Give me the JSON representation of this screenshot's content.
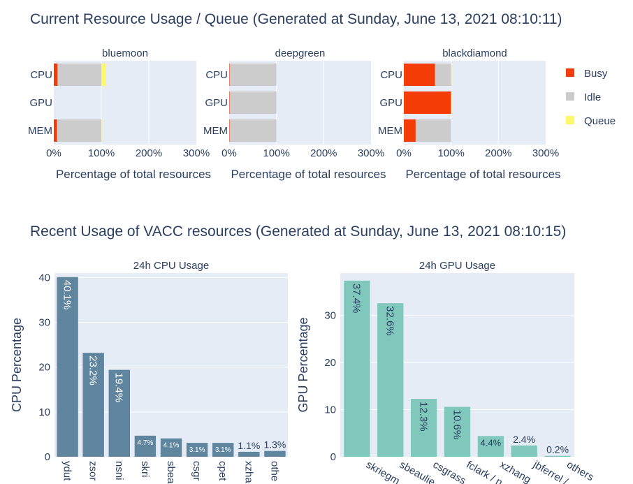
{
  "section1": {
    "title": "Current Resource Usage / Queue (Generated at Sunday, June 13, 2021 08:10:11)"
  },
  "section2": {
    "title": "Recent Usage of VACC resources (Generated at Sunday, June 13, 2021 08:10:15)"
  },
  "colors": {
    "busy": "#F43C06",
    "idle": "#CCCCCC",
    "queue": "#FFF86B",
    "plot_bg": "#E5ECF6",
    "cpu_bar": "#5F859F",
    "gpu_bar": "#7FC8BB"
  },
  "chart_data": [
    {
      "type": "bar",
      "orientation": "horizontal",
      "stacked": true,
      "title": "bluemoon",
      "xlabel": "Percentage of total resources",
      "categories": [
        "CPU",
        "GPU",
        "MEM"
      ],
      "xlim": [
        0,
        300
      ],
      "xticks": [
        "0%",
        "100%",
        "200%",
        "300%"
      ],
      "series": [
        {
          "name": "Busy",
          "values": [
            8,
            0,
            7
          ]
        },
        {
          "name": "Idle",
          "values": [
            92,
            0,
            93
          ]
        },
        {
          "name": "Queue",
          "values": [
            10,
            0,
            2
          ]
        }
      ]
    },
    {
      "type": "bar",
      "orientation": "horizontal",
      "stacked": true,
      "title": "deepgreen",
      "xlabel": "Percentage of total resources",
      "categories": [
        "CPU",
        "GPU",
        "MEM"
      ],
      "xlim": [
        0,
        300
      ],
      "xticks": [
        "0%",
        "100%",
        "200%",
        "300%"
      ],
      "series": [
        {
          "name": "Busy",
          "values": [
            1,
            1,
            1
          ]
        },
        {
          "name": "Idle",
          "values": [
            99,
            99,
            99
          ]
        },
        {
          "name": "Queue",
          "values": [
            0,
            0,
            0
          ]
        }
      ]
    },
    {
      "type": "bar",
      "orientation": "horizontal",
      "stacked": true,
      "title": "blackdiamond",
      "xlabel": "Percentage of total resources",
      "categories": [
        "CPU",
        "GPU",
        "MEM"
      ],
      "xlim": [
        0,
        300
      ],
      "xticks": [
        "0%",
        "100%",
        "200%",
        "300%"
      ],
      "series": [
        {
          "name": "Busy",
          "values": [
            66,
            100,
            25
          ]
        },
        {
          "name": "Idle",
          "values": [
            34,
            0,
            75
          ]
        },
        {
          "name": "Queue",
          "values": [
            1,
            1,
            0
          ]
        }
      ],
      "legend": {
        "position": "right",
        "entries": [
          "Busy",
          "Idle",
          "Queue"
        ]
      }
    },
    {
      "type": "bar",
      "title": "24h CPU Usage",
      "ylabel": "CPU Percentage",
      "ylim": [
        0,
        41
      ],
      "yticks": [
        "0",
        "10",
        "20",
        "30",
        "40"
      ],
      "categories": [
        "ydut",
        "zsor",
        "nsni",
        "skri",
        "sbea",
        "csgr",
        "cpet",
        "xzha",
        "othe"
      ],
      "values": [
        40.1,
        23.2,
        19.4,
        4.7,
        4.1,
        3.1,
        3.1,
        1.1,
        1.3
      ],
      "labels": [
        "40.1%",
        "23.2%",
        "19.4%",
        "4.7%",
        "4.1%",
        "3.1%",
        "3.1%",
        "1.1%",
        "1.3%"
      ]
    },
    {
      "type": "bar",
      "title": "24h GPU Usage",
      "ylabel": "GPU Percentage",
      "ylim": [
        0,
        39
      ],
      "yticks": [
        "0",
        "10",
        "20",
        "30"
      ],
      "categories": [
        "skriegm",
        "sbeaulie",
        "csgrass",
        "fclark / n",
        "xzhang",
        "jbferrel /",
        "others"
      ],
      "values": [
        37.4,
        32.6,
        12.3,
        10.6,
        4.4,
        2.4,
        0.2
      ],
      "labels": [
        "37.4%",
        "32.6%",
        "12.3%",
        "10.6%",
        "4.4%",
        "2.4%",
        "0.2%"
      ]
    }
  ]
}
